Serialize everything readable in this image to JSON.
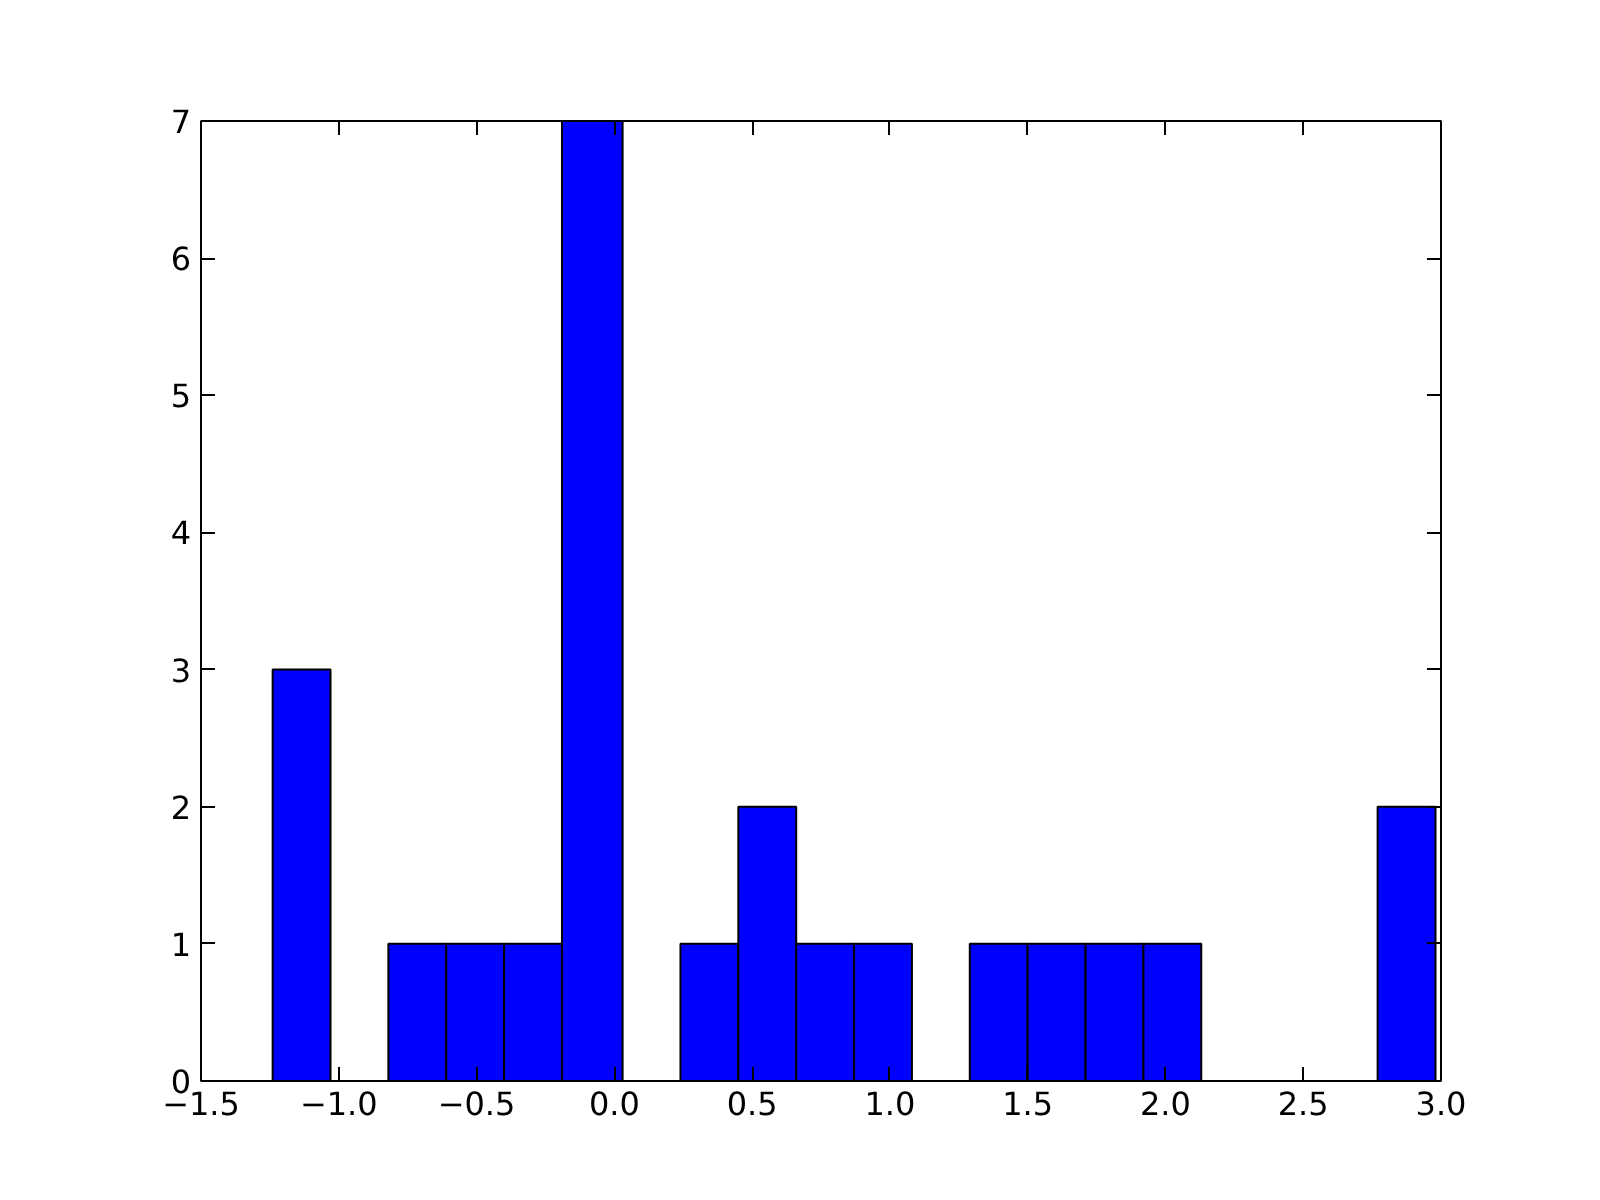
{
  "chart_data": {
    "type": "histogram",
    "bins": [
      -1.24,
      -1.03,
      -0.82,
      -0.61,
      -0.4,
      -0.19,
      0.03,
      0.24,
      0.45,
      0.66,
      0.87,
      1.08,
      1.29,
      1.5,
      1.71,
      1.92,
      2.13,
      2.77,
      2.98
    ],
    "values": [
      3,
      0,
      1,
      1,
      1,
      7,
      0,
      1,
      2,
      1,
      1,
      0,
      1,
      1,
      1,
      1,
      0,
      2
    ],
    "color": "#0000ff",
    "xlim": [
      -1.5,
      3.0
    ],
    "ylim": [
      0,
      7
    ],
    "xticks": [
      {
        "value": -1.5,
        "label": "−1.5"
      },
      {
        "value": -1.0,
        "label": "−1.0"
      },
      {
        "value": -0.5,
        "label": "−0.5"
      },
      {
        "value": 0.0,
        "label": "0.0"
      },
      {
        "value": 0.5,
        "label": "0.5"
      },
      {
        "value": 1.0,
        "label": "1.0"
      },
      {
        "value": 1.5,
        "label": "1.5"
      },
      {
        "value": 2.0,
        "label": "2.0"
      },
      {
        "value": 2.5,
        "label": "2.5"
      },
      {
        "value": 3.0,
        "label": "3.0"
      }
    ],
    "yticks": [
      0,
      1,
      2,
      3,
      4,
      5,
      6,
      7
    ],
    "grid": false
  }
}
